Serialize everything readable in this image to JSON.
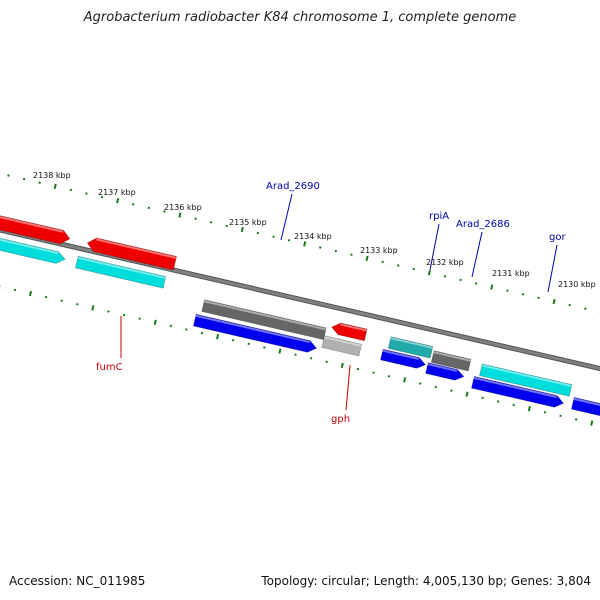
{
  "title": "Agrobacterium radiobacter K84 chromosome 1, complete genome",
  "accession": "Accession: NC_011985",
  "summary": "Topology: circular; Length: 4,005,130 bp; Genes: 3,804",
  "colors": {
    "backbone": "#808080",
    "tick": "#1a7a1a",
    "label_red": "#cc0000",
    "label_blue": "#0000aa",
    "red": "#ee0000",
    "blue": "#0000ee",
    "cyan": "#00dddd",
    "teal": "#22aaaa",
    "dark_gray": "#666666",
    "light_gray": "#b0b0b0"
  },
  "ticks": [
    {
      "label": "2138 kbp"
    },
    {
      "label": "2137 kbp"
    },
    {
      "label": "2136 kbp"
    },
    {
      "label": "2135 kbp"
    },
    {
      "label": "2134 kbp"
    },
    {
      "label": "2133 kbp"
    },
    {
      "label": "2132 kbp"
    },
    {
      "label": "2131 kbp"
    },
    {
      "label": "2130 kbp"
    }
  ],
  "gene_labels": [
    {
      "name": "fumC",
      "color": "label_red"
    },
    {
      "name": "gph",
      "color": "label_red"
    },
    {
      "name": "Arad_2690",
      "color": "label_blue"
    },
    {
      "name": "rpiA",
      "color": "label_blue"
    },
    {
      "name": "Arad_2686",
      "color": "label_blue"
    },
    {
      "name": "gor",
      "color": "label_blue"
    }
  ],
  "features": [
    {
      "name": "red-left",
      "color": "red",
      "dir": "right"
    },
    {
      "name": "cyan-left",
      "color": "cyan",
      "dir": "right"
    },
    {
      "name": "fumC",
      "color": "red",
      "dir": "left"
    },
    {
      "name": "fumC-cds",
      "color": "cyan",
      "dir": "none"
    },
    {
      "name": "Arad_2690",
      "color": "dark_gray",
      "dir": "none"
    },
    {
      "name": "Arad_2690-cds",
      "color": "blue",
      "dir": "right"
    },
    {
      "name": "gph",
      "color": "red",
      "dir": "left"
    },
    {
      "name": "gph-cds",
      "color": "light_gray",
      "dir": "none"
    },
    {
      "name": "rpiA",
      "color": "teal",
      "dir": "none"
    },
    {
      "name": "rpiA-cds",
      "color": "blue",
      "dir": "right"
    },
    {
      "name": "Arad_2686",
      "color": "dark_gray",
      "dir": "none"
    },
    {
      "name": "Arad_2686-cds",
      "color": "blue",
      "dir": "right"
    },
    {
      "name": "gor",
      "color": "cyan",
      "dir": "none"
    },
    {
      "name": "gor-cds",
      "color": "blue",
      "dir": "right"
    },
    {
      "name": "edge-cds",
      "color": "blue",
      "dir": "right"
    }
  ]
}
